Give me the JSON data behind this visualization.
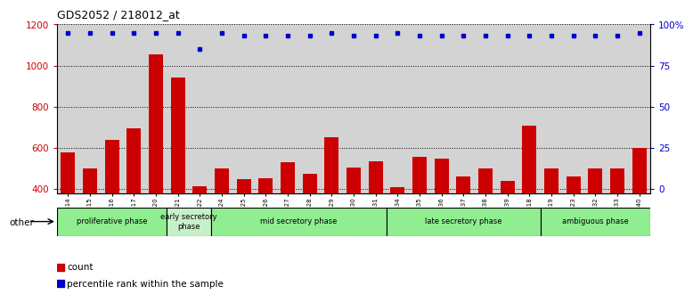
{
  "title": "GDS2052 / 218012_at",
  "samples": [
    "GSM109814",
    "GSM109815",
    "GSM109816",
    "GSM109817",
    "GSM109820",
    "GSM109821",
    "GSM109822",
    "GSM109824",
    "GSM109825",
    "GSM109826",
    "GSM109827",
    "GSM109828",
    "GSM109829",
    "GSM109830",
    "GSM109831",
    "GSM109834",
    "GSM109835",
    "GSM109836",
    "GSM109837",
    "GSM109838",
    "GSM109839",
    "GSM109818",
    "GSM109819",
    "GSM109823",
    "GSM109832",
    "GSM109833",
    "GSM109840"
  ],
  "counts": [
    580,
    500,
    640,
    695,
    1055,
    940,
    415,
    500,
    450,
    453,
    530,
    475,
    650,
    505,
    535,
    410,
    555,
    548,
    460,
    500,
    440,
    710,
    500,
    463,
    500,
    498,
    600
  ],
  "percentile_pct": [
    95,
    95,
    95,
    95,
    95,
    95,
    85,
    95,
    93,
    93,
    93,
    93,
    95,
    93,
    93,
    95,
    93,
    93,
    93,
    93,
    93,
    93,
    93,
    93,
    93,
    93,
    95
  ],
  "bar_color": "#cc0000",
  "dot_color": "#0000cc",
  "phases": [
    {
      "label": "proliferative phase",
      "start": 0,
      "end": 5,
      "color": "#90ee90"
    },
    {
      "label": "early secretory\nphase",
      "start": 5,
      "end": 7,
      "color": "#c8f0c8"
    },
    {
      "label": "mid secretory phase",
      "start": 7,
      "end": 15,
      "color": "#90ee90"
    },
    {
      "label": "late secretory phase",
      "start": 15,
      "end": 22,
      "color": "#90ee90"
    },
    {
      "label": "ambiguous phase",
      "start": 22,
      "end": 27,
      "color": "#90ee90"
    }
  ],
  "ymin": 380,
  "ymax": 1200,
  "yticks": [
    400,
    600,
    800,
    1000,
    1200
  ],
  "y2ticks_pct": [
    0,
    25,
    50,
    75,
    100
  ],
  "y2labels": [
    "0",
    "25",
    "50",
    "75",
    "100%"
  ],
  "bg_color": "#d3d3d3",
  "tick_label_color": "#808080"
}
